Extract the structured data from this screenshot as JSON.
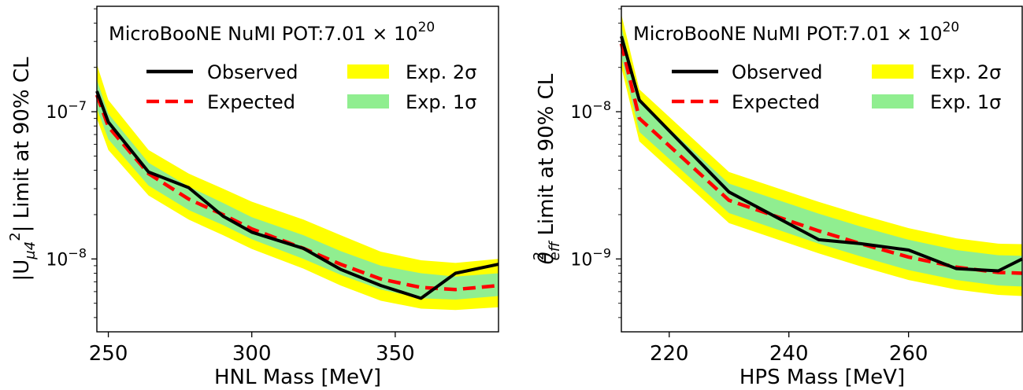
{
  "chart_data": [
    {
      "type": "line",
      "annotation_prefix": "MicroBooNE NuMI POT:",
      "annotation_value": "7.01 × 10",
      "annotation_exp": "20",
      "xlabel": "HNL Mass [MeV]",
      "ylabel_main": "|U",
      "ylabel_sub": "μ4",
      "ylabel_sup": "2",
      "ylabel_rest": "| Limit at 90% CL",
      "xlim": [
        246,
        386
      ],
      "ylim": [
        3.2e-09,
        5.2e-07
      ],
      "yscale": "log",
      "xticks": [
        250,
        300,
        350
      ],
      "xtick_labels": [
        "250",
        "300",
        "350"
      ],
      "yticks_major": [
        1e-07,
        1e-08
      ],
      "ytick_label_base": "10",
      "ytick_label_exps": [
        "−7",
        "−8"
      ],
      "legend_position": "top",
      "legend": [
        {
          "label": "Observed",
          "color": "#000000"
        },
        {
          "label": "Expected",
          "color": "#ff0000"
        },
        {
          "label": "Exp. 2σ",
          "color": "#ffff00"
        },
        {
          "label": "Exp. 1σ",
          "color": "#90ee90"
        }
      ],
      "x": [
        246,
        250,
        264,
        278,
        290,
        300,
        318,
        331,
        345,
        359,
        371,
        386
      ],
      "series": [
        {
          "name": "Observed",
          "values": [
            1.38e-07,
            8.5e-08,
            3.9e-08,
            3.05e-08,
            1.95e-08,
            1.52e-08,
            1.18e-08,
            8.5e-09,
            6.6e-09,
            5.4e-09,
            8e-09,
            9.2e-09
          ]
        },
        {
          "name": "Expected",
          "values": [
            1.3e-07,
            7.9e-08,
            3.8e-08,
            2.55e-08,
            2e-08,
            1.6e-08,
            1.18e-08,
            9.2e-09,
            7.3e-09,
            6.4e-09,
            6.2e-09,
            6.6e-09
          ]
        }
      ],
      "band_2sigma": {
        "lower": [
          9e-08,
          5.5e-08,
          2.7e-08,
          1.85e-08,
          1.45e-08,
          1.17e-08,
          8.6e-09,
          6.6e-09,
          5.2e-09,
          4.6e-09,
          4.5e-09,
          4.7e-09
        ],
        "upper": [
          2.1e-07,
          1.2e-07,
          5.5e-08,
          3.8e-08,
          3e-08,
          2.45e-08,
          1.85e-08,
          1.45e-08,
          1.12e-08,
          9.8e-09,
          9.4e-09,
          1e-08
        ]
      },
      "band_1sigma": {
        "lower": [
          1.05e-07,
          6.5e-08,
          3.15e-08,
          2.15e-08,
          1.7e-08,
          1.36e-08,
          1e-08,
          7.8e-09,
          6.2e-09,
          5.4e-09,
          5.3e-09,
          5.6e-09
        ],
        "upper": [
          1.65e-07,
          9.7e-08,
          4.5e-08,
          3.1e-08,
          2.4e-08,
          1.92e-08,
          1.45e-08,
          1.13e-08,
          9e-09,
          8e-09,
          7.6e-09,
          8e-09
        ]
      }
    },
    {
      "type": "line",
      "annotation_prefix": "MicroBooNE NuMI POT:",
      "annotation_value": "7.01 × 10",
      "annotation_exp": "20",
      "xlabel": "HPS Mass [MeV]",
      "ylabel_main": "θ",
      "ylabel_sub": "eff",
      "ylabel_sup": "2",
      "ylabel_rest": " Limit at 90% CL",
      "xlim": [
        212,
        279
      ],
      "ylim": [
        3.2e-10,
        5.2e-08
      ],
      "yscale": "log",
      "xticks": [
        220,
        240,
        260
      ],
      "xtick_labels": [
        "220",
        "240",
        "260"
      ],
      "yticks_major": [
        1e-08,
        1e-09
      ],
      "ytick_label_base": "10",
      "ytick_label_exps": [
        "−8",
        "−9"
      ],
      "legend_position": "top",
      "legend": [
        {
          "label": "Observed",
          "color": "#000000"
        },
        {
          "label": "Expected",
          "color": "#ff0000"
        },
        {
          "label": "Exp. 2σ",
          "color": "#ffff00"
        },
        {
          "label": "Exp. 1σ",
          "color": "#90ee90"
        }
      ],
      "x": [
        212,
        215,
        230,
        245,
        252,
        260,
        268,
        275,
        279
      ],
      "series": [
        {
          "name": "Observed",
          "values": [
            3.25e-08,
            1.2e-08,
            2.85e-09,
            1.35e-09,
            1.27e-09,
            1.15e-09,
            8.6e-10,
            8.3e-10,
            1e-09
          ]
        },
        {
          "name": "Expected",
          "values": [
            2.9e-08,
            9e-09,
            2.5e-09,
            1.55e-09,
            1.27e-09,
            1.03e-09,
            8.8e-10,
            8.1e-10,
            8e-10
          ]
        }
      ],
      "band_2sigma": {
        "lower": [
          2e-08,
          6.3e-09,
          1.75e-09,
          1.09e-09,
          8.9e-10,
          7.2e-10,
          6.2e-10,
          5.7e-10,
          5.6e-10
        ],
        "upper": [
          4.6e-08,
          1.42e-08,
          3.9e-09,
          2.44e-09,
          2e-09,
          1.62e-09,
          1.38e-09,
          1.27e-09,
          1.26e-09
        ]
      },
      "band_1sigma": {
        "lower": [
          2.35e-08,
          7.3e-09,
          2.05e-09,
          1.27e-09,
          1.04e-09,
          8.4e-10,
          7.2e-10,
          6.6e-10,
          6.5e-10
        ],
        "upper": [
          3.8e-08,
          1.18e-08,
          3.25e-09,
          2.03e-09,
          1.66e-09,
          1.35e-09,
          1.15e-09,
          1.06e-09,
          1.05e-09
        ]
      }
    }
  ]
}
